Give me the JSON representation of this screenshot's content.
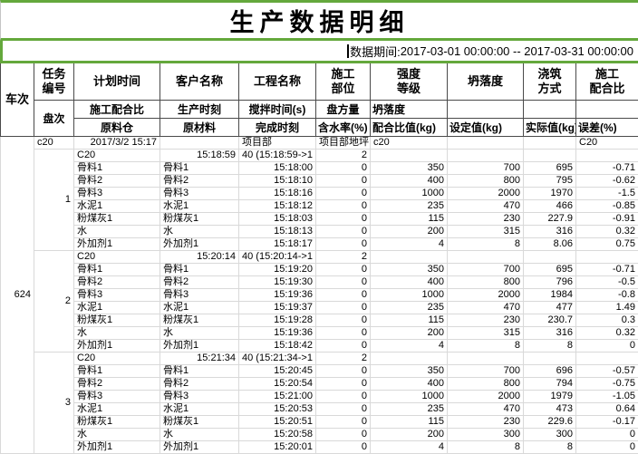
{
  "colors": {
    "accent_green": "#64a83c",
    "header_border": "#4a4a4a",
    "grid_border": "#d9d9d9"
  },
  "title": "生产数据明细",
  "period": {
    "label": "数据期间:",
    "value": "2017-03-01 00:00:00 -- 2017-03-31 00:00:00"
  },
  "table": {
    "header": {
      "row1": [
        "车次",
        "任务\n编号",
        "计划时间",
        "客户名称",
        "工程名称",
        "施工\n部位",
        "强度\n等级",
        "坍落度",
        "浇筑\n方式",
        "施工\n配合比"
      ],
      "row2": [
        "盘次",
        "施工配合比",
        "生产时刻",
        "搅拌时间(s)",
        "盘方量",
        "坍落度",
        "",
        "",
        ""
      ],
      "row3": [
        "原料仓",
        "原材料",
        "完成时刻",
        "含水率(%)",
        "配合比值(kg)",
        "设定值(kg)",
        "实际值(kg)",
        "误差(%)"
      ]
    },
    "vehicle_no": "624",
    "plan_row": {
      "task_no": "c20",
      "plan_time": "2017/3/2 15:17",
      "customer": "",
      "project": "项目部",
      "part": "项目部地坪",
      "grade": "c20",
      "slump": "",
      "pour": "",
      "mix": "C20"
    },
    "groups": [
      {
        "pan_no": "1",
        "batch_row": {
          "mix": "C20",
          "prod_time": "15:18:59",
          "stir": "40 (15:18:59->1",
          "volume": "2"
        },
        "materials": [
          {
            "bin": "骨料1",
            "material": "骨料1",
            "finish": "15:18:00",
            "moisture": "0",
            "ratio": "350",
            "set": "700",
            "actual": "695",
            "error": "-0.71"
          },
          {
            "bin": "骨料2",
            "material": "骨料2",
            "finish": "15:18:10",
            "moisture": "0",
            "ratio": "400",
            "set": "800",
            "actual": "795",
            "error": "-0.62"
          },
          {
            "bin": "骨料3",
            "material": "骨料3",
            "finish": "15:18:16",
            "moisture": "0",
            "ratio": "1000",
            "set": "2000",
            "actual": "1970",
            "error": "-1.5"
          },
          {
            "bin": "水泥1",
            "material": "水泥1",
            "finish": "15:18:12",
            "moisture": "0",
            "ratio": "235",
            "set": "470",
            "actual": "466",
            "error": "-0.85"
          },
          {
            "bin": "粉煤灰1",
            "material": "粉煤灰1",
            "finish": "15:18:03",
            "moisture": "0",
            "ratio": "115",
            "set": "230",
            "actual": "227.9",
            "error": "-0.91"
          },
          {
            "bin": "水",
            "material": "水",
            "finish": "15:18:13",
            "moisture": "0",
            "ratio": "200",
            "set": "315",
            "actual": "316",
            "error": "0.32"
          },
          {
            "bin": "外加剂1",
            "material": "外加剂1",
            "finish": "15:18:17",
            "moisture": "0",
            "ratio": "4",
            "set": "8",
            "actual": "8.06",
            "error": "0.75"
          }
        ]
      },
      {
        "pan_no": "2",
        "batch_row": {
          "mix": "C20",
          "prod_time": "15:20:14",
          "stir": "40 (15:20:14->1",
          "volume": "2"
        },
        "materials": [
          {
            "bin": "骨料1",
            "material": "骨料1",
            "finish": "15:19:20",
            "moisture": "0",
            "ratio": "350",
            "set": "700",
            "actual": "695",
            "error": "-0.71"
          },
          {
            "bin": "骨料2",
            "material": "骨料2",
            "finish": "15:19:30",
            "moisture": "0",
            "ratio": "400",
            "set": "800",
            "actual": "796",
            "error": "-0.5"
          },
          {
            "bin": "骨料3",
            "material": "骨料3",
            "finish": "15:19:36",
            "moisture": "0",
            "ratio": "1000",
            "set": "2000",
            "actual": "1984",
            "error": "-0.8"
          },
          {
            "bin": "水泥1",
            "material": "水泥1",
            "finish": "15:19:37",
            "moisture": "0",
            "ratio": "235",
            "set": "470",
            "actual": "477",
            "error": "1.49"
          },
          {
            "bin": "粉煤灰1",
            "material": "粉煤灰1",
            "finish": "15:19:28",
            "moisture": "0",
            "ratio": "115",
            "set": "230",
            "actual": "230.7",
            "error": "0.3"
          },
          {
            "bin": "水",
            "material": "水",
            "finish": "15:19:36",
            "moisture": "0",
            "ratio": "200",
            "set": "315",
            "actual": "316",
            "error": "0.32"
          },
          {
            "bin": "外加剂1",
            "material": "外加剂1",
            "finish": "15:18:42",
            "moisture": "0",
            "ratio": "4",
            "set": "8",
            "actual": "8",
            "error": "0"
          }
        ]
      },
      {
        "pan_no": "3",
        "batch_row": {
          "mix": "C20",
          "prod_time": "15:21:34",
          "stir": "40 (15:21:34->1",
          "volume": "2"
        },
        "materials": [
          {
            "bin": "骨料1",
            "material": "骨料1",
            "finish": "15:20:45",
            "moisture": "0",
            "ratio": "350",
            "set": "700",
            "actual": "696",
            "error": "-0.57"
          },
          {
            "bin": "骨料2",
            "material": "骨料2",
            "finish": "15:20:54",
            "moisture": "0",
            "ratio": "400",
            "set": "800",
            "actual": "794",
            "error": "-0.75"
          },
          {
            "bin": "骨料3",
            "material": "骨料3",
            "finish": "15:21:00",
            "moisture": "0",
            "ratio": "1000",
            "set": "2000",
            "actual": "1979",
            "error": "-1.05"
          },
          {
            "bin": "水泥1",
            "material": "水泥1",
            "finish": "15:20:53",
            "moisture": "0",
            "ratio": "235",
            "set": "470",
            "actual": "473",
            "error": "0.64"
          },
          {
            "bin": "粉煤灰1",
            "material": "粉煤灰1",
            "finish": "15:20:51",
            "moisture": "0",
            "ratio": "115",
            "set": "230",
            "actual": "229.6",
            "error": "-0.17"
          },
          {
            "bin": "水",
            "material": "水",
            "finish": "15:20:58",
            "moisture": "0",
            "ratio": "200",
            "set": "300",
            "actual": "300",
            "error": "0"
          },
          {
            "bin": "外加剂1",
            "material": "外加剂1",
            "finish": "15:20:01",
            "moisture": "0",
            "ratio": "4",
            "set": "8",
            "actual": "8",
            "error": "0"
          }
        ]
      }
    ]
  }
}
